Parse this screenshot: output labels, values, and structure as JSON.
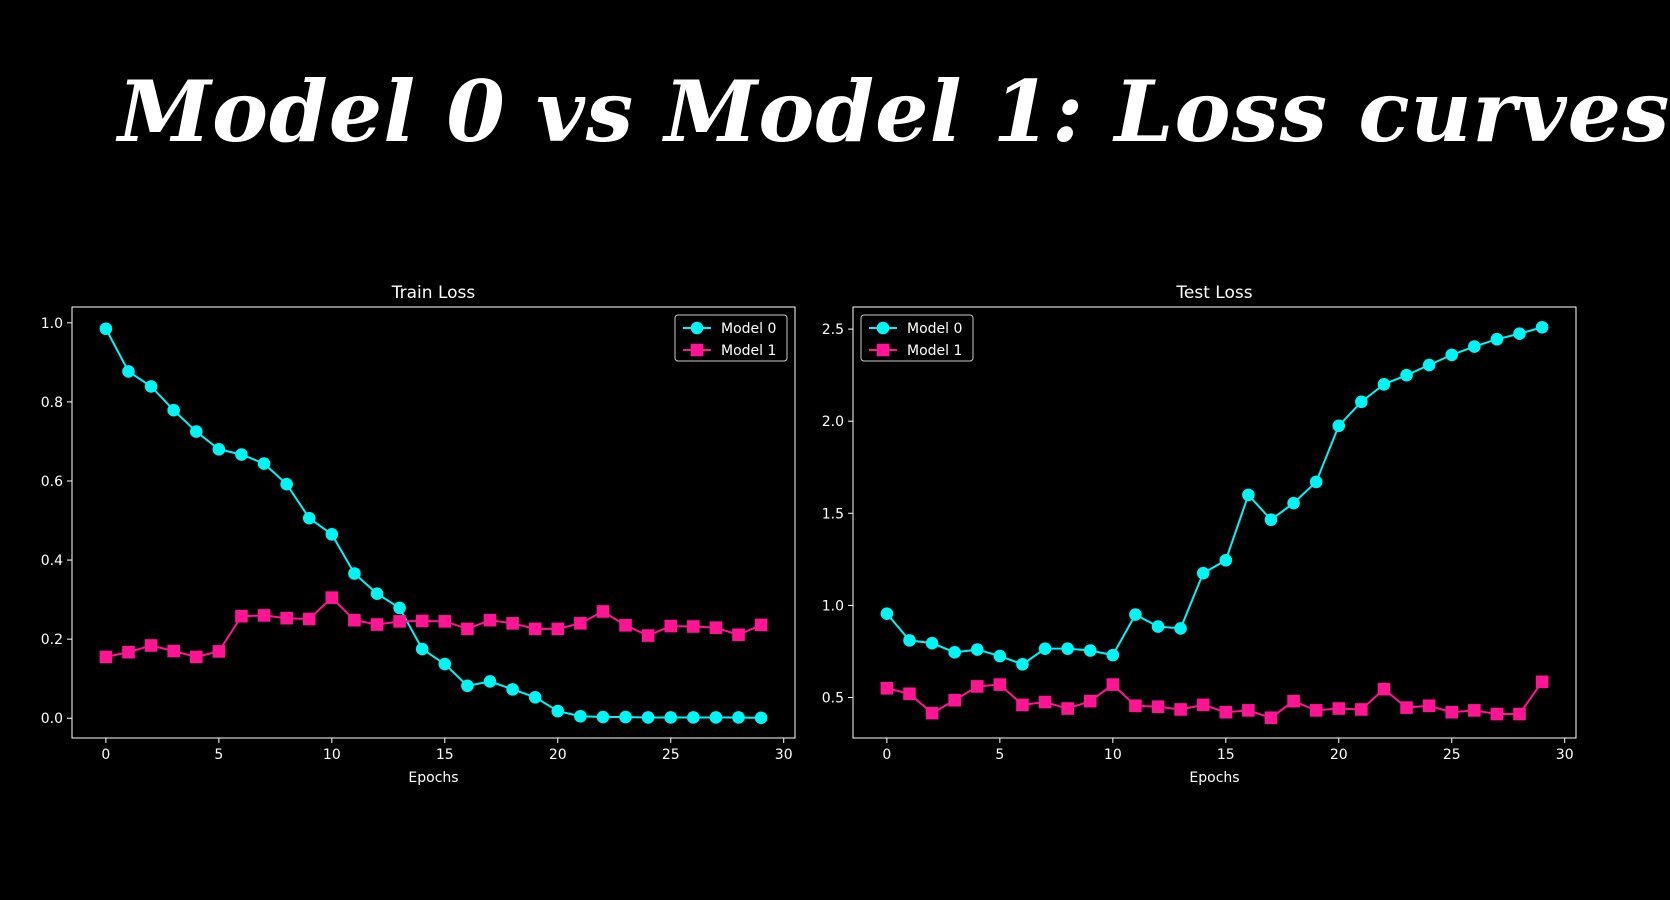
{
  "slide": {
    "title": "Model 0 vs Model 1: Loss curves"
  },
  "colors": {
    "background": "#000000",
    "model0": "#00f5f5",
    "model1": "#ff1493",
    "axes": "#ffffff"
  },
  "chart_data": [
    {
      "type": "line",
      "title": "Train Loss",
      "xlabel": "Epochs",
      "ylabel": "",
      "xlim": [
        -1.5,
        30.5
      ],
      "ylim": [
        -0.05,
        1.04
      ],
      "xticks": [
        0,
        5,
        10,
        15,
        20,
        25,
        30
      ],
      "yticks": [
        0.0,
        0.2,
        0.4,
        0.6,
        0.8,
        1.0
      ],
      "ytick_labels": [
        "0.0",
        "0.2",
        "0.4",
        "0.6",
        "0.8",
        "1.0"
      ],
      "legend_position": "top-right",
      "grid": false,
      "x": [
        0,
        1,
        2,
        3,
        4,
        5,
        6,
        7,
        8,
        9,
        10,
        11,
        12,
        13,
        14,
        15,
        16,
        17,
        18,
        19,
        20,
        21,
        22,
        23,
        24,
        25,
        26,
        27,
        28,
        29
      ],
      "series": [
        {
          "name": "Model 0",
          "marker": "circle",
          "color": "#00f5f5",
          "values": [
            0.985,
            0.877,
            0.839,
            0.779,
            0.725,
            0.68,
            0.667,
            0.644,
            0.592,
            0.506,
            0.465,
            0.366,
            0.315,
            0.279,
            0.175,
            0.137,
            0.082,
            0.093,
            0.073,
            0.053,
            0.018,
            0.005,
            0.003,
            0.003,
            0.002,
            0.002,
            0.002,
            0.002,
            0.002,
            0.001
          ]
        },
        {
          "name": "Model 1",
          "marker": "square",
          "color": "#ff1493",
          "values": [
            0.155,
            0.167,
            0.184,
            0.17,
            0.155,
            0.169,
            0.258,
            0.26,
            0.253,
            0.251,
            0.305,
            0.248,
            0.237,
            0.245,
            0.246,
            0.245,
            0.226,
            0.248,
            0.24,
            0.226,
            0.226,
            0.24,
            0.27,
            0.235,
            0.209,
            0.233,
            0.232,
            0.229,
            0.211,
            0.236
          ]
        }
      ]
    },
    {
      "type": "line",
      "title": "Test Loss",
      "xlabel": "Epochs",
      "ylabel": "",
      "xlim": [
        -1.5,
        30.5
      ],
      "ylim": [
        0.28,
        2.62
      ],
      "xticks": [
        0,
        5,
        10,
        15,
        20,
        25,
        30
      ],
      "yticks": [
        0.5,
        1.0,
        1.5,
        2.0,
        2.5
      ],
      "ytick_labels": [
        "0.5",
        "1.0",
        "1.5",
        "2.0",
        "2.5"
      ],
      "legend_position": "top-left",
      "grid": false,
      "x": [
        0,
        1,
        2,
        3,
        4,
        5,
        6,
        7,
        8,
        9,
        10,
        11,
        12,
        13,
        14,
        15,
        16,
        17,
        18,
        19,
        20,
        21,
        22,
        23,
        24,
        25,
        26,
        27,
        28,
        29
      ],
      "series": [
        {
          "name": "Model 0",
          "marker": "circle",
          "color": "#00f5f5",
          "values": [
            0.955,
            0.81,
            0.795,
            0.745,
            0.76,
            0.725,
            0.68,
            0.765,
            0.765,
            0.755,
            0.73,
            0.95,
            0.885,
            0.875,
            1.175,
            1.245,
            1.6,
            1.465,
            1.555,
            1.67,
            1.975,
            2.105,
            2.2,
            2.25,
            2.305,
            2.36,
            2.405,
            2.445,
            2.475,
            2.51
          ]
        },
        {
          "name": "Model 1",
          "marker": "square",
          "color": "#ff1493",
          "values": [
            0.55,
            0.52,
            0.415,
            0.485,
            0.56,
            0.57,
            0.46,
            0.475,
            0.44,
            0.48,
            0.57,
            0.455,
            0.45,
            0.435,
            0.46,
            0.42,
            0.43,
            0.39,
            0.48,
            0.43,
            0.44,
            0.435,
            0.545,
            0.445,
            0.455,
            0.42,
            0.43,
            0.41,
            0.41,
            0.585
          ]
        }
      ]
    }
  ]
}
